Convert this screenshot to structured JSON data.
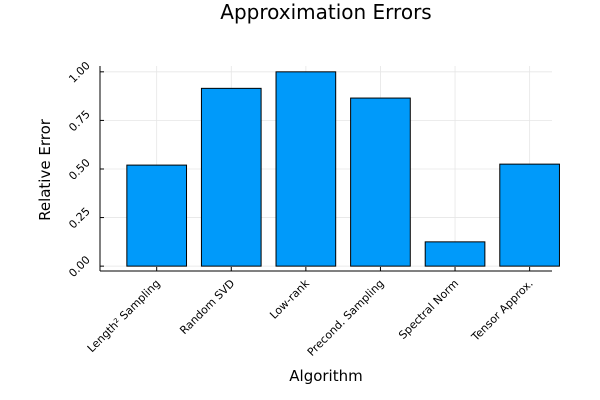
{
  "chart_data": {
    "type": "bar",
    "title": "Approximation Errors",
    "xlabel": "Algorithm",
    "ylabel": "Relative Error",
    "categories": [
      "Length² Sampling",
      "Random SVD",
      "Low-rank",
      "Precond. Sampling",
      "Spectral Norm",
      "Tensor Approx."
    ],
    "values": [
      0.52,
      0.915,
      1.0,
      0.865,
      0.125,
      0.525
    ],
    "ylim": [
      -0.025,
      1.03
    ],
    "yticks": [
      0.0,
      0.25,
      0.5,
      0.75,
      1.0
    ],
    "ytick_labels": [
      "0.00",
      "0.25",
      "0.50",
      "0.75",
      "1.00"
    ],
    "grid": true,
    "legend": "none",
    "bar_color": "#009AFA"
  }
}
